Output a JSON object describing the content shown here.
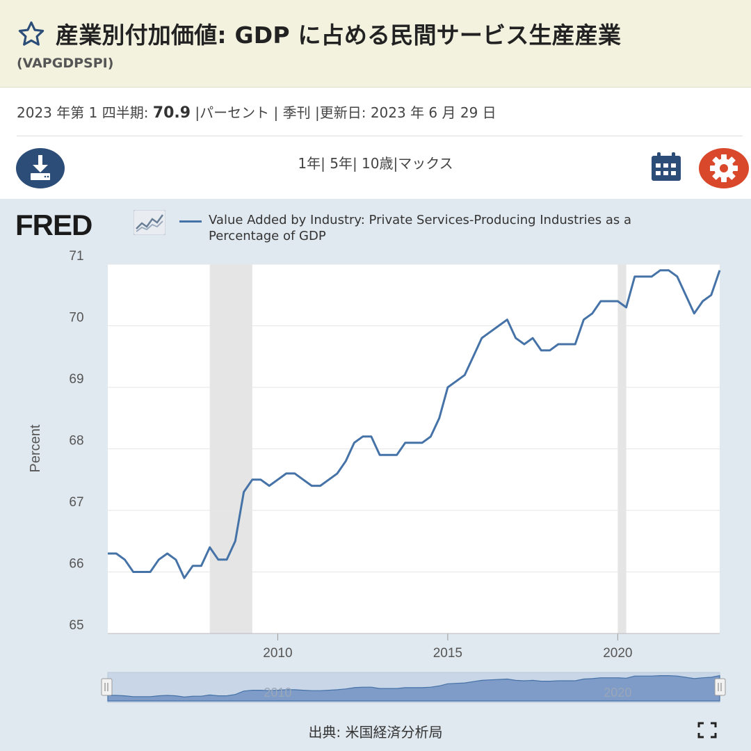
{
  "header": {
    "title": "産業別付加価値: GDP に占める民間サービス生産産業",
    "series_id": "(VAPGDPSPI)"
  },
  "meta": {
    "period": "2023 年第 1 四半期: ",
    "value": "70.9",
    "rest": " |パーセント | 季刊 |更新日: 2023 年 6 月 29 日"
  },
  "toolbar": {
    "download_icon": "download-icon",
    "ranges": [
      "1年",
      "| 5年",
      "| 10歳",
      "|マックス"
    ],
    "calendar_icon": "calendar-icon",
    "settings_icon": "gear-icon"
  },
  "branding": {
    "logo_text": "FRED"
  },
  "colors": {
    "series": "#4572a7",
    "recession": "#e5e5e5",
    "header_bg": "#f2f2df",
    "chart_bg": "#e1e9f0",
    "gear": "#d9482b",
    "download": "#2b4d78"
  },
  "chart_data": {
    "type": "line",
    "legend": "Value Added by Industry: Private Services-Producing Industries as a Percentage of GDP",
    "ylabel": "Percent",
    "ylim": [
      65,
      71
    ],
    "yticks": [
      "65",
      "66",
      "67",
      "68",
      "69",
      "70",
      "71"
    ],
    "xticks": [
      "2010",
      "2015",
      "2020"
    ],
    "xlim": [
      "2005-Q1",
      "2023-Q1"
    ],
    "recessions": [
      [
        "2008-Q1",
        "2009-Q2"
      ],
      [
        "2020-Q1",
        "2020-Q2"
      ]
    ],
    "series": [
      {
        "x": [
          "2005-Q1",
          "2005-Q2",
          "2005-Q3",
          "2005-Q4",
          "2006-Q1",
          "2006-Q2",
          "2006-Q3",
          "2006-Q4",
          "2007-Q1",
          "2007-Q2",
          "2007-Q3",
          "2007-Q4",
          "2008-Q1",
          "2008-Q2",
          "2008-Q3",
          "2008-Q4",
          "2009-Q1",
          "2009-Q2",
          "2009-Q3",
          "2009-Q4",
          "2010-Q1",
          "2010-Q2",
          "2010-Q3",
          "2010-Q4",
          "2011-Q1",
          "2011-Q2",
          "2011-Q3",
          "2011-Q4",
          "2012-Q1",
          "2012-Q2",
          "2012-Q3",
          "2012-Q4",
          "2013-Q1",
          "2013-Q2",
          "2013-Q3",
          "2013-Q4",
          "2014-Q1",
          "2014-Q2",
          "2014-Q3",
          "2014-Q4",
          "2015-Q1",
          "2015-Q2",
          "2015-Q3",
          "2015-Q4",
          "2016-Q1",
          "2016-Q2",
          "2016-Q3",
          "2016-Q4",
          "2017-Q1",
          "2017-Q2",
          "2017-Q3",
          "2017-Q4",
          "2018-Q1",
          "2018-Q2",
          "2018-Q3",
          "2018-Q4",
          "2019-Q1",
          "2019-Q2",
          "2019-Q3",
          "2019-Q4",
          "2020-Q1",
          "2020-Q2",
          "2020-Q3",
          "2020-Q4",
          "2021-Q1",
          "2021-Q2",
          "2021-Q3",
          "2021-Q4",
          "2022-Q1",
          "2022-Q2",
          "2022-Q3",
          "2022-Q4",
          "2023-Q1"
        ],
        "values": [
          66.3,
          66.3,
          66.2,
          66.0,
          66.0,
          66.0,
          66.2,
          66.3,
          66.2,
          65.9,
          66.1,
          66.1,
          66.4,
          66.2,
          66.2,
          66.5,
          67.3,
          67.5,
          67.5,
          67.4,
          67.5,
          67.6,
          67.6,
          67.5,
          67.4,
          67.4,
          67.5,
          67.6,
          67.8,
          68.1,
          68.2,
          68.2,
          67.9,
          67.9,
          67.9,
          68.1,
          68.1,
          68.1,
          68.2,
          68.5,
          69.0,
          69.1,
          69.2,
          69.5,
          69.8,
          69.9,
          70.0,
          70.1,
          69.8,
          69.7,
          69.8,
          69.6,
          69.6,
          69.7,
          69.7,
          69.7,
          70.1,
          70.2,
          70.4,
          70.4,
          70.4,
          70.3,
          70.8,
          70.8,
          70.8,
          70.9,
          70.9,
          70.8,
          70.5,
          70.2,
          70.4,
          70.5,
          70.9
        ]
      }
    ]
  },
  "navigator": {
    "labels": [
      "2010",
      "2020"
    ]
  },
  "footer": {
    "source": "出典: 米国経済分析局",
    "fullscreen_icon": "fullscreen-icon"
  }
}
